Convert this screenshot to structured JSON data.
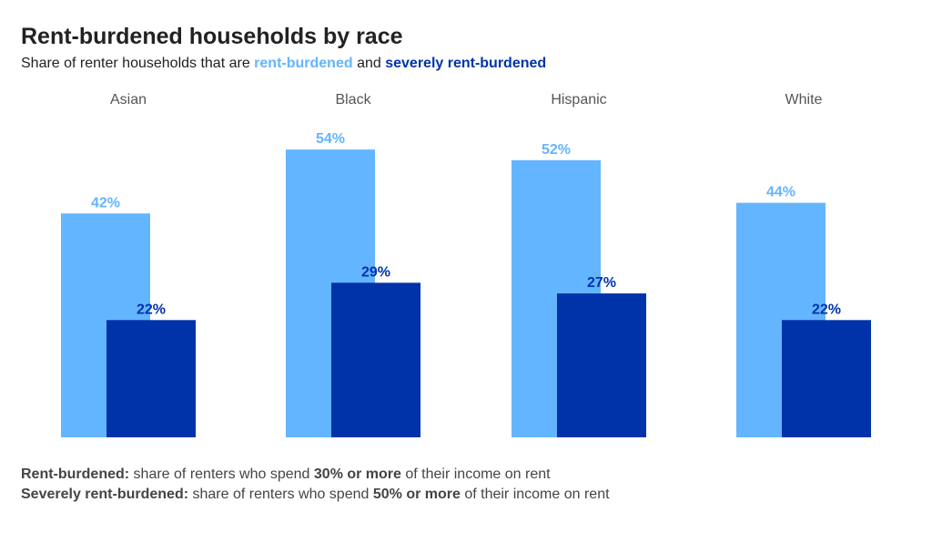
{
  "title": "Rent-burdened households by race",
  "subtitle": {
    "prefix": "Share of renter households that are ",
    "highlight_1": "rent-burdened",
    "middle": " and ",
    "highlight_2": "severely rent-burdened"
  },
  "colors": {
    "rent_burdened": "#64B5FF",
    "severely_rent_burdened": "#0033AA",
    "category_label": "#555555"
  },
  "chart_data": {
    "type": "bar",
    "title": "Rent-burdened households by race",
    "categories": [
      "Asian",
      "Black",
      "Hispanic",
      "White"
    ],
    "series": [
      {
        "name": "rent-burdened",
        "values": [
          42,
          54,
          52,
          44
        ],
        "labels": [
          "42%",
          "54%",
          "52%",
          "44%"
        ]
      },
      {
        "name": "severely rent-burdened",
        "values": [
          22,
          29,
          27,
          22
        ],
        "labels": [
          "22%",
          "29%",
          "27%",
          "22%"
        ]
      }
    ],
    "unit": "%",
    "ylim": [
      0,
      100
    ],
    "grid": false,
    "legend": "none"
  },
  "footnotes": [
    {
      "term": "Rent-burdened:",
      "text_before": " share of renters who spend ",
      "emphasis": "30% or more",
      "text_after": " of their income on rent"
    },
    {
      "term": "Severely rent-burdened:",
      "text_before": " share of renters who spend ",
      "emphasis": "50% or more",
      "text_after": " of their income on rent"
    }
  ]
}
